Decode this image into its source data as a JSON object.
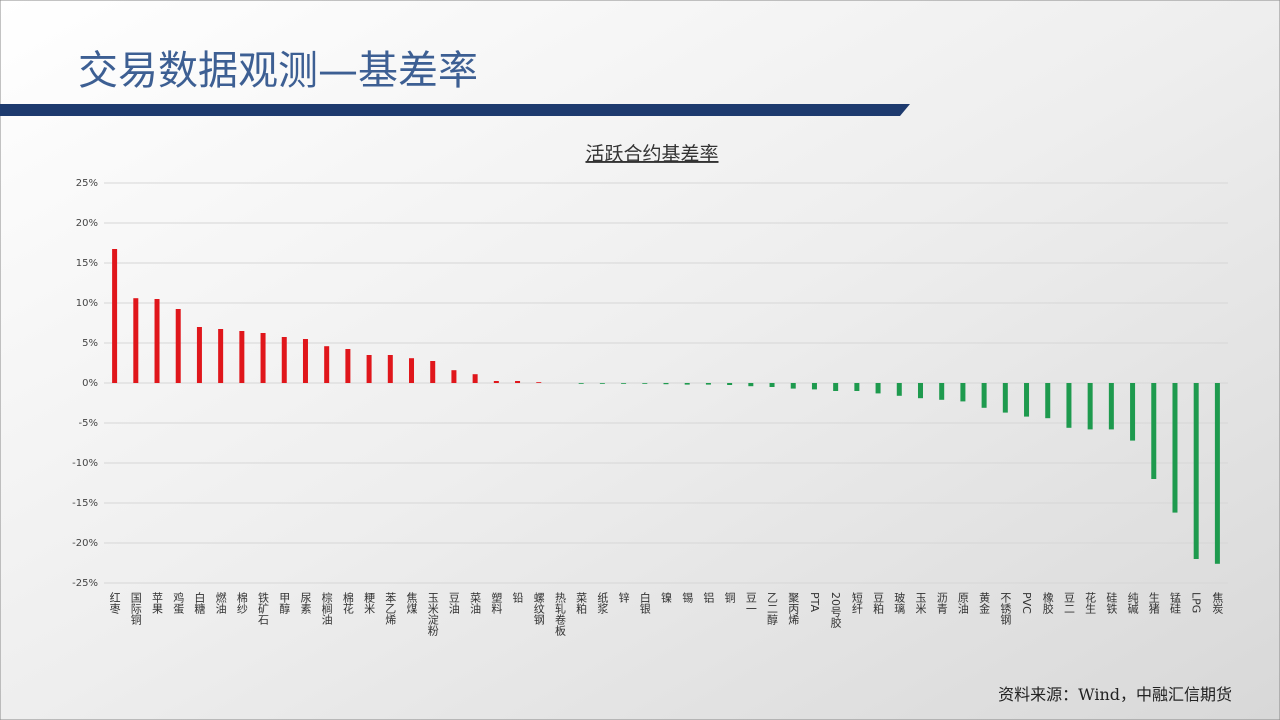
{
  "slide_title": "交易数据观测—基差率",
  "source": "资料来源：Wind，中融汇信期货",
  "chart_data": {
    "type": "bar",
    "title": "活跃合约基差率",
    "categories": [
      "红枣",
      "国际铜",
      "苹果",
      "鸡蛋",
      "白糖",
      "燃油",
      "棉纱",
      "铁矿石",
      "甲醇",
      "尿素",
      "棕榈油",
      "棉花",
      "粳米",
      "苯乙烯",
      "焦煤",
      "玉米淀粉",
      "豆油",
      "菜油",
      "塑料",
      "铅",
      "螺纹钢",
      "热轧卷板",
      "菜粕",
      "纸浆",
      "锌",
      "白银",
      "镍",
      "锡",
      "铝",
      "铜",
      "豆一",
      "乙二醇",
      "聚丙烯",
      "PTA",
      "20号胶",
      "短纤",
      "豆粕",
      "玻璃",
      "玉米",
      "沥青",
      "原油",
      "黄金",
      "不锈钢",
      "PVC",
      "橡胶",
      "豆二",
      "花生",
      "硅铁",
      "纯碱",
      "生猪",
      "锰硅",
      "LPG",
      "焦炭"
    ],
    "values": [
      16.75,
      10.6,
      10.5,
      9.25,
      7.0,
      6.75,
      6.5,
      6.25,
      5.75,
      5.5,
      4.6,
      4.25,
      3.5,
      3.5,
      3.1,
      2.75,
      1.6,
      1.1,
      0.25,
      0.25,
      0.1,
      0,
      -0.1,
      -0.1,
      -0.1,
      -0.1,
      -0.15,
      -0.2,
      -0.2,
      -0.25,
      -0.4,
      -0.5,
      -0.7,
      -0.8,
      -1.0,
      -1.0,
      -1.3,
      -1.6,
      -1.9,
      -2.1,
      -2.3,
      -3.1,
      -3.7,
      -4.2,
      -4.4,
      -5.6,
      -5.8,
      -5.8,
      -7.2,
      -12,
      -16.2,
      -22,
      -22.6
    ],
    "positive_color": "#e0161b",
    "negative_color": "#1e9a4e",
    "ylim": [
      -25,
      25
    ],
    "yticks": [
      {
        "value": -25,
        "label": "-25%"
      },
      {
        "value": -20,
        "label": "-20%"
      },
      {
        "value": -15,
        "label": "-15%"
      },
      {
        "value": -10,
        "label": "-10%"
      },
      {
        "value": -5,
        "label": "-5%"
      },
      {
        "value": 0,
        "label": "0%"
      },
      {
        "value": 5,
        "label": "5%"
      },
      {
        "value": 10,
        "label": "10%"
      },
      {
        "value": 15,
        "label": "15%"
      },
      {
        "value": 20,
        "label": "20%"
      },
      {
        "value": 25,
        "label": "25%"
      }
    ],
    "grid": true
  }
}
